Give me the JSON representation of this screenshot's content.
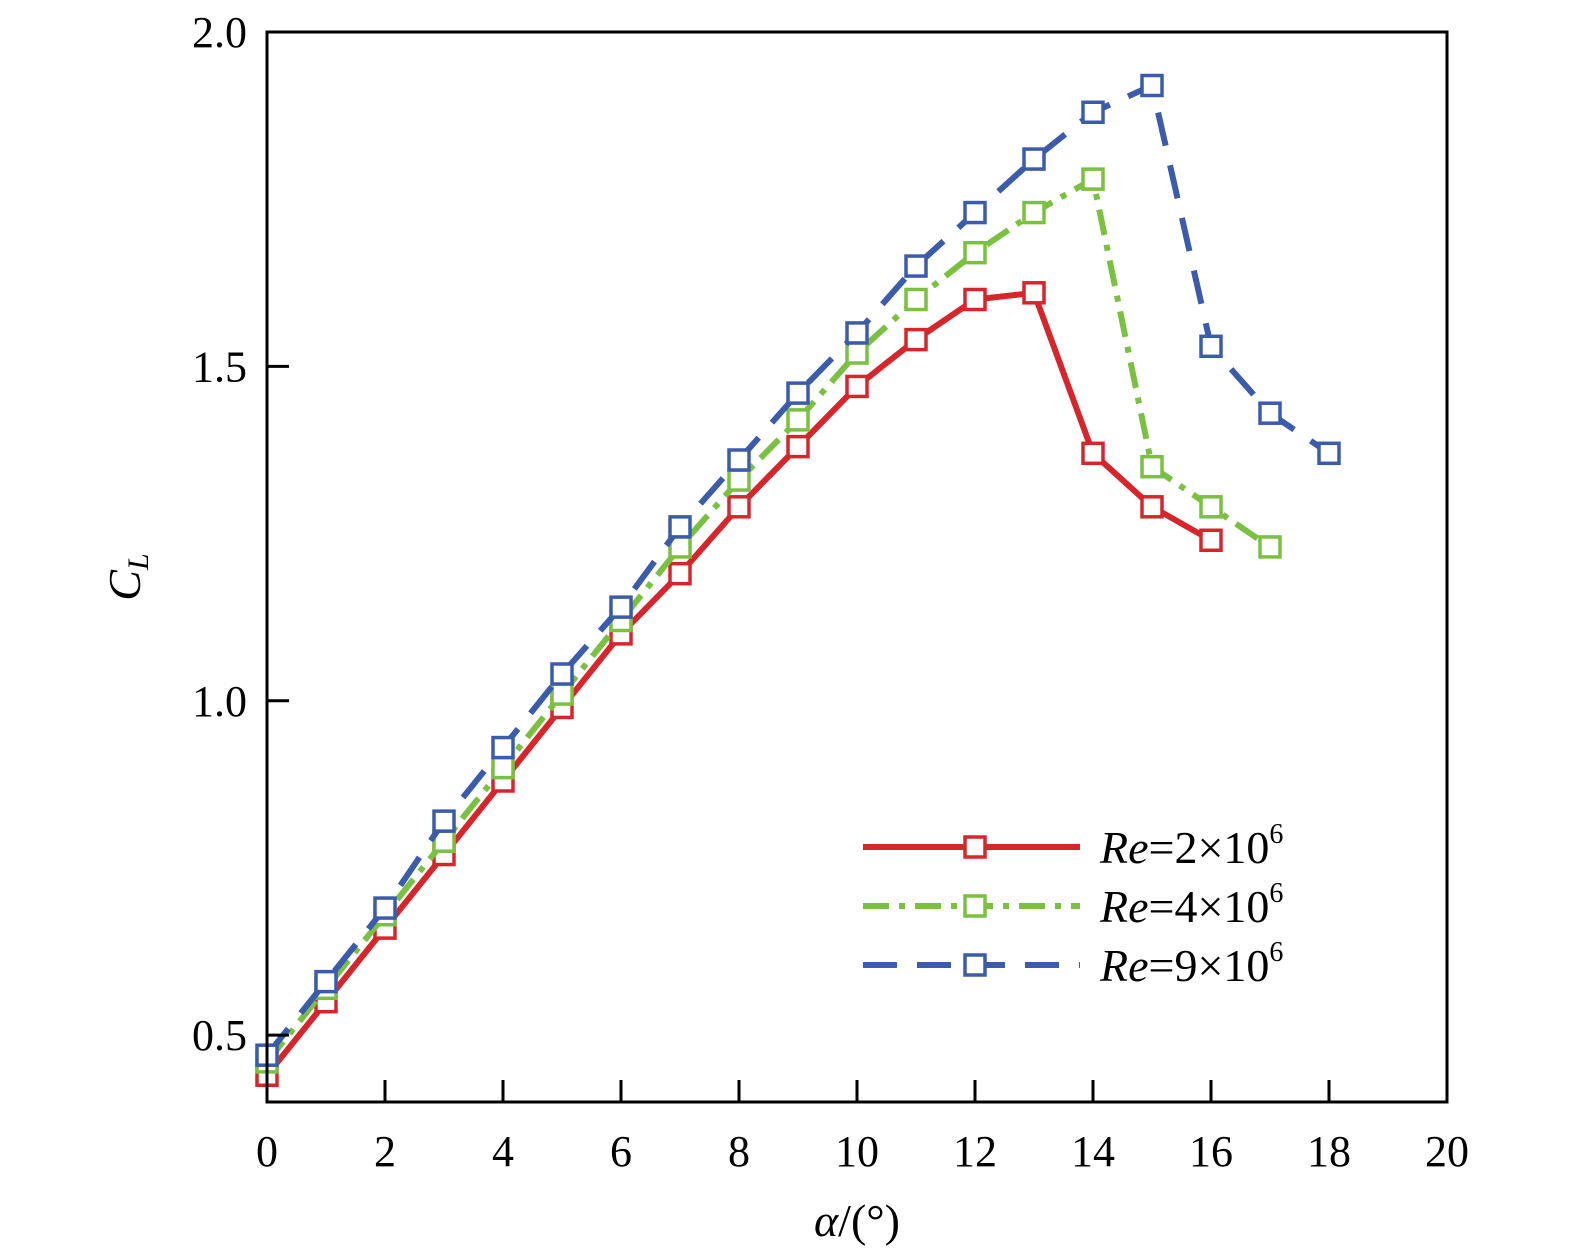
{
  "chart_data": {
    "type": "line",
    "title": "",
    "xlabel": {
      "var": "α",
      "unit": "/(°)"
    },
    "ylabel": {
      "var": "C",
      "sub": "L"
    },
    "xlim": [
      0,
      20
    ],
    "ylim": [
      0.4,
      2.0
    ],
    "xticks": [
      "0",
      "2",
      "4",
      "6",
      "8",
      "10",
      "12",
      "14",
      "16",
      "18",
      "20"
    ],
    "yticks": [
      "0.5",
      "1.0",
      "1.5",
      "2.0"
    ],
    "grid": false,
    "legend_position": "lower-right",
    "series": [
      {
        "name": {
          "var": "Re",
          "rest": "=2×10",
          "sup": "6"
        },
        "color": "#d6262c",
        "line_style": "solid",
        "marker": "open-square",
        "x": [
          0,
          1,
          2,
          3,
          4,
          5,
          6,
          7,
          8,
          9,
          10,
          11,
          12,
          13,
          14,
          15,
          16
        ],
        "y": [
          0.44,
          0.55,
          0.66,
          0.77,
          0.88,
          0.99,
          1.1,
          1.19,
          1.29,
          1.38,
          1.47,
          1.54,
          1.6,
          1.61,
          1.37,
          1.29,
          1.24
        ]
      },
      {
        "name": {
          "var": "Re",
          "rest": "=4×10",
          "sup": "6"
        },
        "color": "#7ac142",
        "line_style": "dash-dot",
        "marker": "open-square",
        "x": [
          0,
          1,
          2,
          3,
          4,
          5,
          6,
          7,
          8,
          9,
          10,
          11,
          12,
          13,
          14,
          15,
          16,
          17
        ],
        "y": [
          0.46,
          0.57,
          0.68,
          0.79,
          0.9,
          1.01,
          1.12,
          1.23,
          1.33,
          1.42,
          1.52,
          1.6,
          1.67,
          1.73,
          1.78,
          1.35,
          1.29,
          1.23
        ]
      },
      {
        "name": {
          "var": "Re",
          "rest": "=9×10",
          "sup": "6"
        },
        "color": "#3b5bab",
        "line_style": "dashed",
        "marker": "open-square",
        "x": [
          0,
          1,
          2,
          3,
          4,
          5,
          6,
          7,
          8,
          9,
          10,
          11,
          12,
          13,
          14,
          15,
          16,
          17,
          18
        ],
        "y": [
          0.47,
          0.58,
          0.69,
          0.82,
          0.93,
          1.04,
          1.14,
          1.26,
          1.36,
          1.46,
          1.55,
          1.65,
          1.73,
          1.81,
          1.88,
          1.92,
          1.53,
          1.43,
          1.37
        ]
      }
    ]
  }
}
